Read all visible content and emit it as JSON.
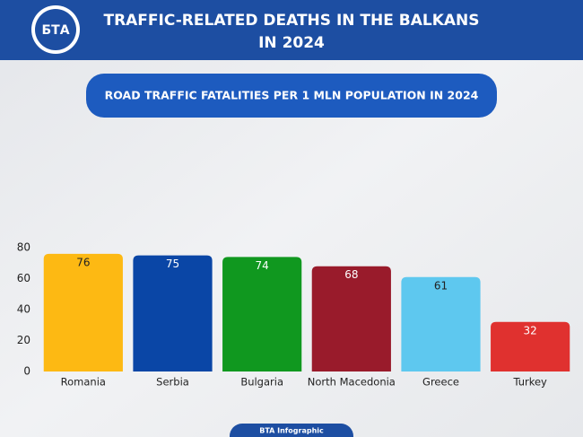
{
  "header": {
    "logo": "БТА",
    "title_lines": [
      "TRAFFIC-RELATED DEATHS IN THE BALKANS",
      "IN 2024"
    ]
  },
  "chart_data": {
    "type": "bar",
    "title": "ROAD TRAFFIC FATALITIES PER 1 MLN POPULATION IN 2024",
    "categories": [
      "Romania",
      "Serbia",
      "Bulgaria",
      "North Macedonia",
      "Greece",
      "Turkey"
    ],
    "values": [
      76,
      75,
      74,
      68,
      61,
      32
    ],
    "colors": [
      "#fdb913",
      "#0a46a6",
      "#10981f",
      "#991b2b",
      "#5ec8ef",
      "#e0312f"
    ],
    "label_colors": [
      "#222222",
      "#ffffff",
      "#ffffff",
      "#ffffff",
      "#222222",
      "#ffffff"
    ],
    "ylim": [
      0,
      80
    ],
    "yticks": [
      0,
      20,
      40,
      60,
      80
    ],
    "grid": false
  },
  "footer": {
    "text": "BTA Infographic"
  }
}
